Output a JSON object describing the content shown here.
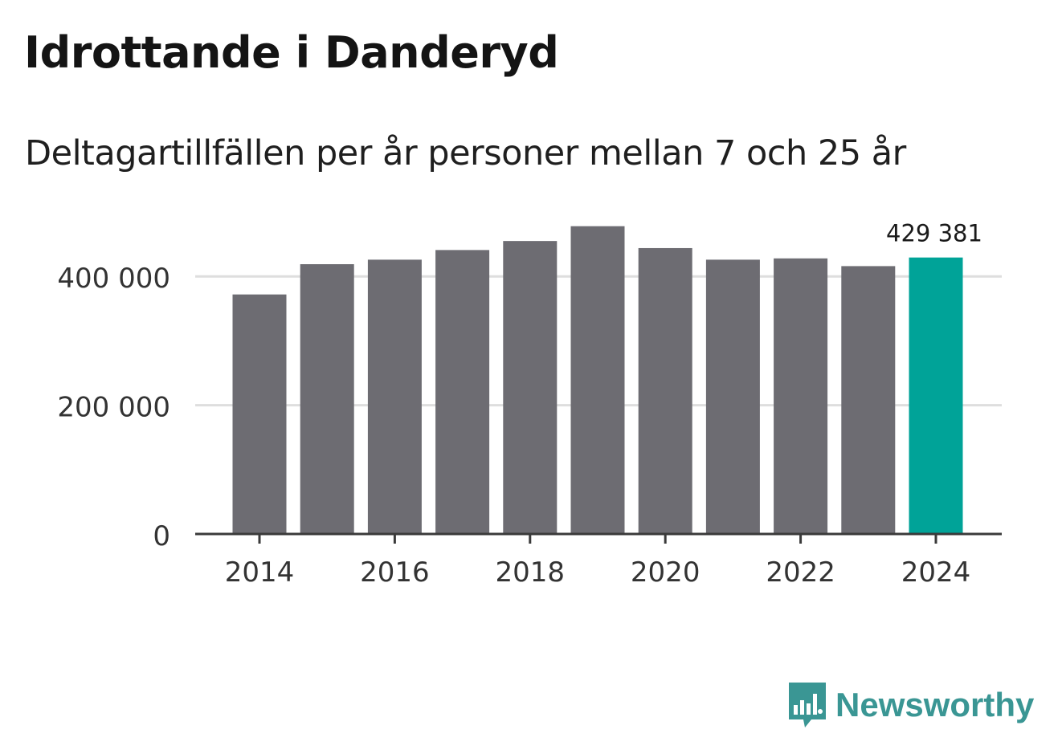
{
  "header": {
    "title": "Idrottande i Danderyd",
    "subtitle": "Deltagartillfällen per år personer mellan 7 och 25 år"
  },
  "brand": {
    "name": "Newsworthy",
    "icon": "newsworthy-logo-icon",
    "color": "#3a9694"
  },
  "colors": {
    "bar": "#6d6c72",
    "highlight": "#00a398",
    "grid": "#dedede",
    "axis": "#3a3a3a",
    "tick_text": "#333333"
  },
  "chart_data": {
    "type": "bar",
    "title": "Idrottande i Danderyd",
    "subtitle": "Deltagartillfällen per år personer mellan 7 och 25 år",
    "xlabel": "",
    "ylabel": "",
    "categories": [
      "2014",
      "2015",
      "2016",
      "2017",
      "2018",
      "2019",
      "2020",
      "2021",
      "2022",
      "2023",
      "2024"
    ],
    "values": [
      372000,
      419000,
      426000,
      441000,
      455000,
      478000,
      444000,
      426000,
      428000,
      416000,
      429381
    ],
    "highlight_index": 10,
    "highlight_label": "429 381",
    "ylim": [
      0,
      530000
    ],
    "yticks": [
      0,
      200000,
      400000
    ],
    "ytick_labels": [
      "0",
      "200 000",
      "400 000"
    ],
    "xtick_labels": [
      "2014",
      "2016",
      "2018",
      "2020",
      "2022",
      "2024"
    ],
    "grid": true,
    "legend": "none"
  }
}
